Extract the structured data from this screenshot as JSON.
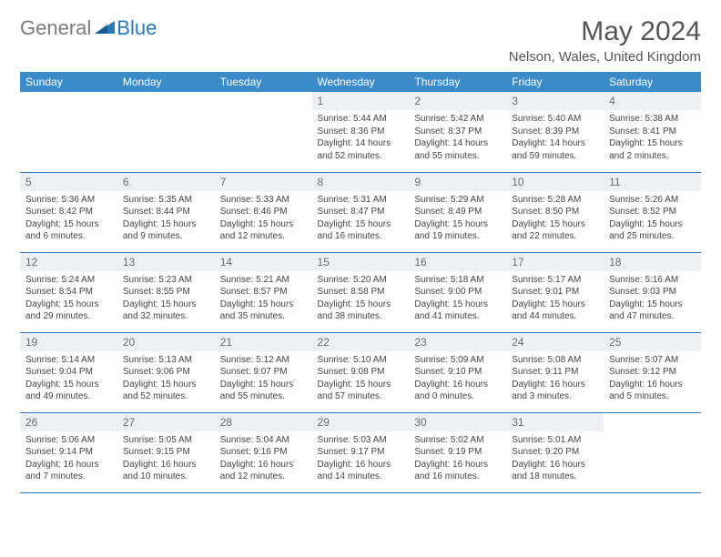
{
  "logo": {
    "general": "General",
    "blue": "Blue"
  },
  "title": "May 2024",
  "location": "Nelson, Wales, United Kingdom",
  "colors": {
    "header_bg": "#3b8bc9",
    "header_text": "#ffffff",
    "daynum_bg": "#eef1f3",
    "border": "#2b77bb",
    "logo_gray": "#7a7a7a",
    "logo_blue": "#2b77bb"
  },
  "weekdays": [
    "Sunday",
    "Monday",
    "Tuesday",
    "Wednesday",
    "Thursday",
    "Friday",
    "Saturday"
  ],
  "weeks": [
    [
      {
        "n": "",
        "sr": "",
        "ss": "",
        "dl": ""
      },
      {
        "n": "",
        "sr": "",
        "ss": "",
        "dl": ""
      },
      {
        "n": "",
        "sr": "",
        "ss": "",
        "dl": ""
      },
      {
        "n": "1",
        "sr": "Sunrise: 5:44 AM",
        "ss": "Sunset: 8:36 PM",
        "dl": "Daylight: 14 hours and 52 minutes."
      },
      {
        "n": "2",
        "sr": "Sunrise: 5:42 AM",
        "ss": "Sunset: 8:37 PM",
        "dl": "Daylight: 14 hours and 55 minutes."
      },
      {
        "n": "3",
        "sr": "Sunrise: 5:40 AM",
        "ss": "Sunset: 8:39 PM",
        "dl": "Daylight: 14 hours and 59 minutes."
      },
      {
        "n": "4",
        "sr": "Sunrise: 5:38 AM",
        "ss": "Sunset: 8:41 PM",
        "dl": "Daylight: 15 hours and 2 minutes."
      }
    ],
    [
      {
        "n": "5",
        "sr": "Sunrise: 5:36 AM",
        "ss": "Sunset: 8:42 PM",
        "dl": "Daylight: 15 hours and 6 minutes."
      },
      {
        "n": "6",
        "sr": "Sunrise: 5:35 AM",
        "ss": "Sunset: 8:44 PM",
        "dl": "Daylight: 15 hours and 9 minutes."
      },
      {
        "n": "7",
        "sr": "Sunrise: 5:33 AM",
        "ss": "Sunset: 8:46 PM",
        "dl": "Daylight: 15 hours and 12 minutes."
      },
      {
        "n": "8",
        "sr": "Sunrise: 5:31 AM",
        "ss": "Sunset: 8:47 PM",
        "dl": "Daylight: 15 hours and 16 minutes."
      },
      {
        "n": "9",
        "sr": "Sunrise: 5:29 AM",
        "ss": "Sunset: 8:49 PM",
        "dl": "Daylight: 15 hours and 19 minutes."
      },
      {
        "n": "10",
        "sr": "Sunrise: 5:28 AM",
        "ss": "Sunset: 8:50 PM",
        "dl": "Daylight: 15 hours and 22 minutes."
      },
      {
        "n": "11",
        "sr": "Sunrise: 5:26 AM",
        "ss": "Sunset: 8:52 PM",
        "dl": "Daylight: 15 hours and 25 minutes."
      }
    ],
    [
      {
        "n": "12",
        "sr": "Sunrise: 5:24 AM",
        "ss": "Sunset: 8:54 PM",
        "dl": "Daylight: 15 hours and 29 minutes."
      },
      {
        "n": "13",
        "sr": "Sunrise: 5:23 AM",
        "ss": "Sunset: 8:55 PM",
        "dl": "Daylight: 15 hours and 32 minutes."
      },
      {
        "n": "14",
        "sr": "Sunrise: 5:21 AM",
        "ss": "Sunset: 8:57 PM",
        "dl": "Daylight: 15 hours and 35 minutes."
      },
      {
        "n": "15",
        "sr": "Sunrise: 5:20 AM",
        "ss": "Sunset: 8:58 PM",
        "dl": "Daylight: 15 hours and 38 minutes."
      },
      {
        "n": "16",
        "sr": "Sunrise: 5:18 AM",
        "ss": "Sunset: 9:00 PM",
        "dl": "Daylight: 15 hours and 41 minutes."
      },
      {
        "n": "17",
        "sr": "Sunrise: 5:17 AM",
        "ss": "Sunset: 9:01 PM",
        "dl": "Daylight: 15 hours and 44 minutes."
      },
      {
        "n": "18",
        "sr": "Sunrise: 5:16 AM",
        "ss": "Sunset: 9:03 PM",
        "dl": "Daylight: 15 hours and 47 minutes."
      }
    ],
    [
      {
        "n": "19",
        "sr": "Sunrise: 5:14 AM",
        "ss": "Sunset: 9:04 PM",
        "dl": "Daylight: 15 hours and 49 minutes."
      },
      {
        "n": "20",
        "sr": "Sunrise: 5:13 AM",
        "ss": "Sunset: 9:06 PM",
        "dl": "Daylight: 15 hours and 52 minutes."
      },
      {
        "n": "21",
        "sr": "Sunrise: 5:12 AM",
        "ss": "Sunset: 9:07 PM",
        "dl": "Daylight: 15 hours and 55 minutes."
      },
      {
        "n": "22",
        "sr": "Sunrise: 5:10 AM",
        "ss": "Sunset: 9:08 PM",
        "dl": "Daylight: 15 hours and 57 minutes."
      },
      {
        "n": "23",
        "sr": "Sunrise: 5:09 AM",
        "ss": "Sunset: 9:10 PM",
        "dl": "Daylight: 16 hours and 0 minutes."
      },
      {
        "n": "24",
        "sr": "Sunrise: 5:08 AM",
        "ss": "Sunset: 9:11 PM",
        "dl": "Daylight: 16 hours and 3 minutes."
      },
      {
        "n": "25",
        "sr": "Sunrise: 5:07 AM",
        "ss": "Sunset: 9:12 PM",
        "dl": "Daylight: 16 hours and 5 minutes."
      }
    ],
    [
      {
        "n": "26",
        "sr": "Sunrise: 5:06 AM",
        "ss": "Sunset: 9:14 PM",
        "dl": "Daylight: 16 hours and 7 minutes."
      },
      {
        "n": "27",
        "sr": "Sunrise: 5:05 AM",
        "ss": "Sunset: 9:15 PM",
        "dl": "Daylight: 16 hours and 10 minutes."
      },
      {
        "n": "28",
        "sr": "Sunrise: 5:04 AM",
        "ss": "Sunset: 9:16 PM",
        "dl": "Daylight: 16 hours and 12 minutes."
      },
      {
        "n": "29",
        "sr": "Sunrise: 5:03 AM",
        "ss": "Sunset: 9:17 PM",
        "dl": "Daylight: 16 hours and 14 minutes."
      },
      {
        "n": "30",
        "sr": "Sunrise: 5:02 AM",
        "ss": "Sunset: 9:19 PM",
        "dl": "Daylight: 16 hours and 16 minutes."
      },
      {
        "n": "31",
        "sr": "Sunrise: 5:01 AM",
        "ss": "Sunset: 9:20 PM",
        "dl": "Daylight: 16 hours and 18 minutes."
      },
      {
        "n": "",
        "sr": "",
        "ss": "",
        "dl": ""
      }
    ]
  ]
}
